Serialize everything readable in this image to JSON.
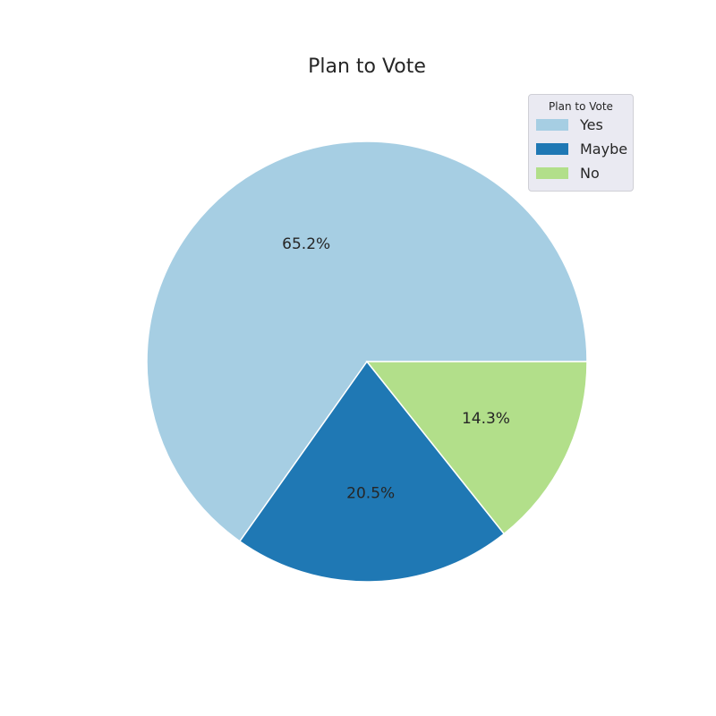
{
  "chart_data": {
    "type": "pie",
    "title": "Plan to Vote",
    "categories": [
      "Yes",
      "Maybe",
      "No"
    ],
    "values": [
      65.2,
      20.5,
      14.3
    ],
    "value_labels": [
      "65.2%",
      "20.5%",
      "14.3%"
    ],
    "colors": [
      "#a6cee3",
      "#1f78b4",
      "#b2df8a"
    ],
    "legend": {
      "title": "Plan to Vote",
      "placement": "top-right",
      "items": [
        "Yes",
        "Maybe",
        "No"
      ]
    }
  }
}
